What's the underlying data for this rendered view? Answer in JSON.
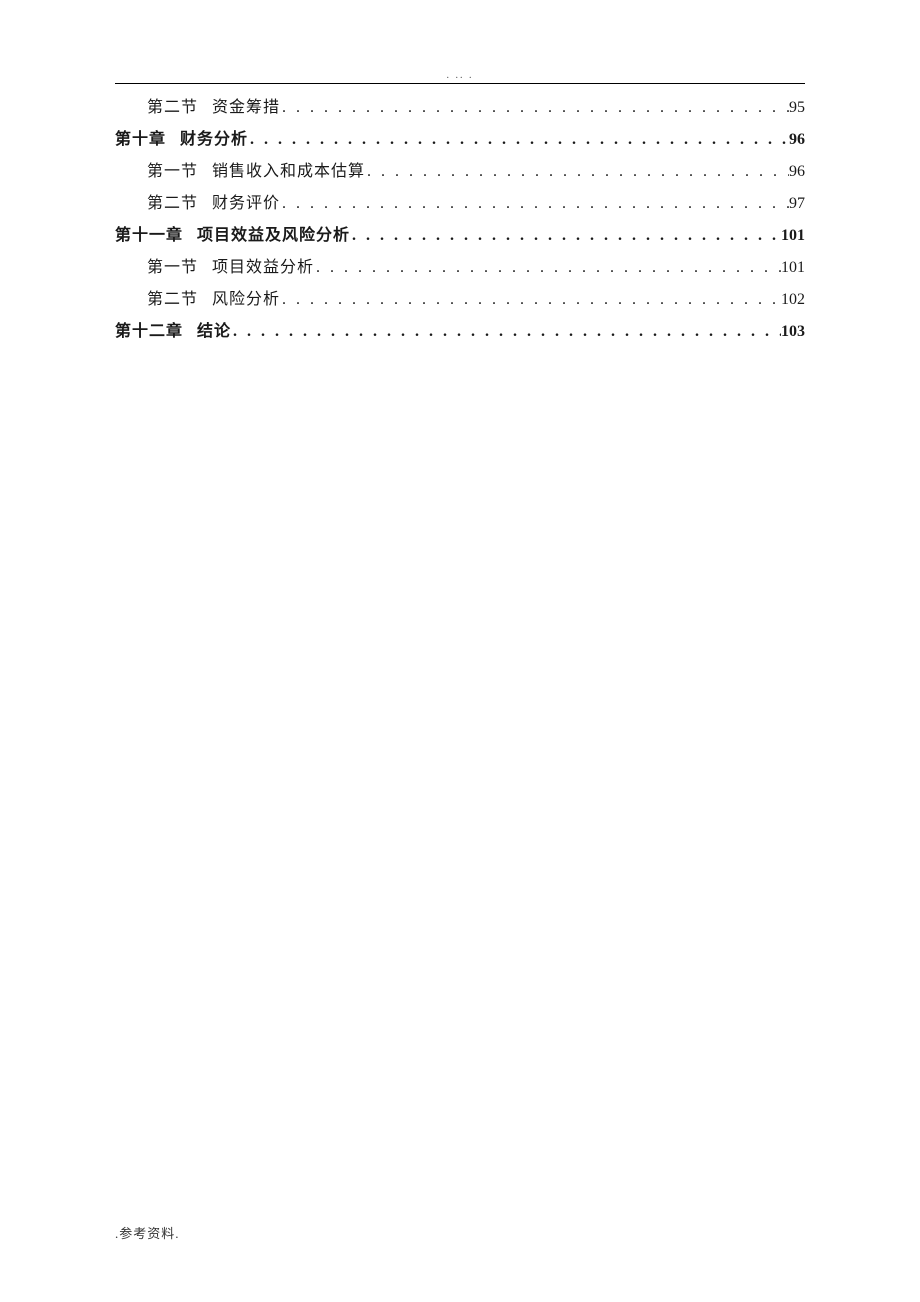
{
  "header_mark": ". .. .",
  "footer_text": ".参考资料.",
  "dots_fill": ". . . . . . . . . . . . . . . . . . . . . . . . . . . . . . . . . . . . . . . . . . . . . . . . . . . . . . . . . . . . . . . . . . . . . . . . . . . . . . . . . . . . . . . . . . . . . . . . . . . .",
  "toc": [
    {
      "level": "section",
      "label": "第二节",
      "title": "资金筹措",
      "page": "95"
    },
    {
      "level": "chapter",
      "label": "第十章",
      "title": "财务分析",
      "page": "96"
    },
    {
      "level": "section",
      "label": "第一节",
      "title": "销售收入和成本估算",
      "page": "96"
    },
    {
      "level": "section",
      "label": "第二节",
      "title": "财务评价",
      "page": "97"
    },
    {
      "level": "chapter",
      "label": "第十一章",
      "title": "项目效益及风险分析",
      "page": "101"
    },
    {
      "level": "section",
      "label": "第一节",
      "title": "项目效益分析",
      "page": "101"
    },
    {
      "level": "section",
      "label": "第二节",
      "title": "风险分析",
      "page": "102"
    },
    {
      "level": "chapter",
      "label": "第十二章",
      "title": "结论",
      "page": "103"
    }
  ]
}
